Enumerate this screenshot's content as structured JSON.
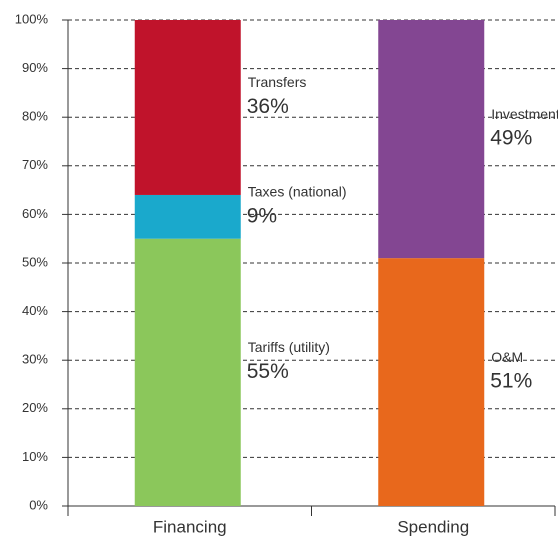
{
  "chart_data": {
    "type": "stacked_bar",
    "categories": [
      "Financing",
      "Spending"
    ],
    "series": [
      {
        "name": "Tariffs (utility)",
        "color": "#8bc75b",
        "values": [
          55,
          null
        ],
        "value_labels": [
          "55%",
          null
        ]
      },
      {
        "name": "Taxes (national)",
        "color": "#1aa9cc",
        "values": [
          9,
          null
        ],
        "value_labels": [
          "9%",
          null
        ]
      },
      {
        "name": "Transfers",
        "color": "#c0132b",
        "values": [
          36,
          null
        ],
        "value_labels": [
          "36%",
          null
        ]
      },
      {
        "name": "O&M",
        "color": "#e8681c",
        "values": [
          null,
          51
        ],
        "value_labels": [
          null,
          "51%"
        ]
      },
      {
        "name": "Investment",
        "color": "#834692",
        "values": [
          null,
          49
        ],
        "value_labels": [
          null,
          "49%"
        ]
      }
    ],
    "ylim": [
      0,
      100
    ],
    "yticks": [
      {
        "value": 0,
        "label": "0%"
      },
      {
        "value": 10,
        "label": "10%"
      },
      {
        "value": 20,
        "label": "20%"
      },
      {
        "value": 30,
        "label": "30%"
      },
      {
        "value": 40,
        "label": "40%"
      },
      {
        "value": 50,
        "label": "50%"
      },
      {
        "value": 60,
        "label": "60%"
      },
      {
        "value": 70,
        "label": "70%"
      },
      {
        "value": 80,
        "label": "80%"
      },
      {
        "value": 90,
        "label": "90%"
      },
      {
        "value": 100,
        "label": "100%"
      }
    ],
    "grid": true
  }
}
